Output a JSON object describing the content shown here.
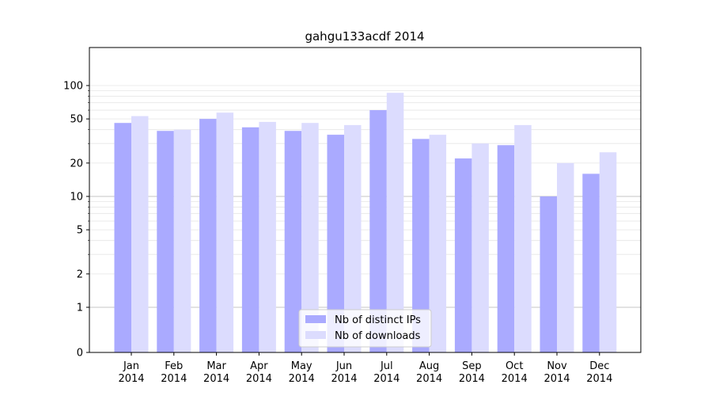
{
  "chart_data": {
    "type": "bar",
    "title": "gahgu133acdf 2014",
    "categories": [
      "Jan\n2014",
      "Feb\n2014",
      "Mar\n2014",
      "Apr\n2014",
      "May\n2014",
      "Jun\n2014",
      "Jul\n2014",
      "Aug\n2014",
      "Sep\n2014",
      "Oct\n2014",
      "Nov\n2014",
      "Dec\n2014"
    ],
    "series": [
      {
        "name": "Nb of distinct IPs",
        "color": "#aaaaff",
        "values": [
          46,
          39,
          50,
          42,
          39,
          36,
          60,
          33,
          22,
          29,
          10,
          16
        ]
      },
      {
        "name": "Nb of downloads",
        "color": "#dcdcfe",
        "values": [
          53,
          40,
          57,
          47,
          46,
          44,
          86,
          36,
          30,
          44,
          20,
          25
        ]
      }
    ],
    "yscale": "symlog",
    "ylim": [
      0,
      100
    ],
    "yticks": [
      0,
      1,
      2,
      5,
      10,
      20,
      50,
      100
    ],
    "ytick_labels": [
      "0",
      "1",
      "2",
      "5",
      "10",
      "20",
      "50",
      "100"
    ],
    "grid": true,
    "legend_position": "bottom-center"
  }
}
